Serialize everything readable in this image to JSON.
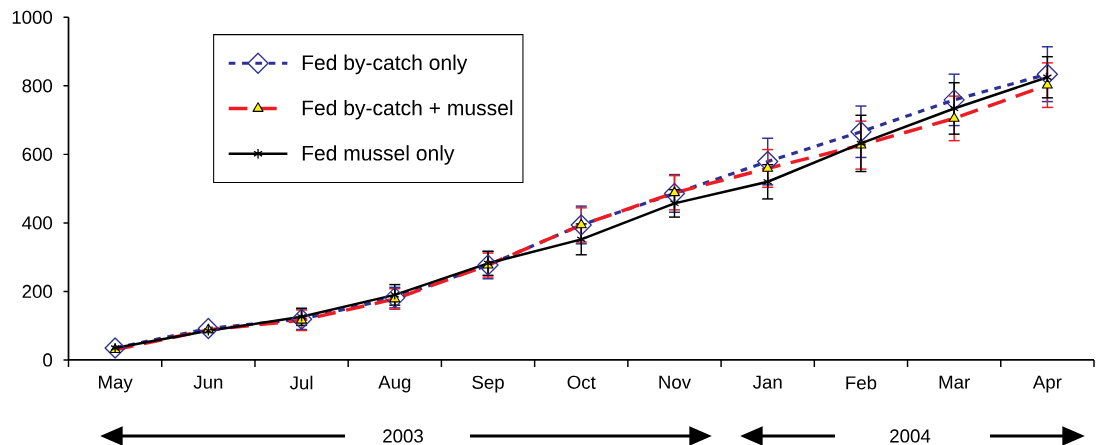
{
  "chart_data": {
    "type": "line",
    "categories": [
      "May",
      "Jun",
      "Jul",
      "Aug",
      "Sep",
      "Oct",
      "Nov",
      "Jan",
      "Feb",
      "Mar",
      "Apr"
    ],
    "series": [
      {
        "name": "Fed by-catch only",
        "color": "#2e3192",
        "marker": "diamond",
        "line_style": "dotted",
        "values": [
          35,
          92,
          119,
          182,
          277,
          394,
          486,
          579,
          666,
          759,
          834
        ],
        "errors": [
          null,
          null,
          30,
          30,
          40,
          55,
          55,
          68,
          75,
          75,
          80
        ]
      },
      {
        "name": "Fed by-catch + mussel",
        "color": "#ed1c24",
        "marker": "triangle",
        "line_style": "dashed",
        "values": [
          30,
          88,
          116,
          178,
          277,
          394,
          488,
          559,
          627,
          705,
          802
        ],
        "errors": [
          null,
          null,
          30,
          30,
          35,
          50,
          50,
          55,
          70,
          65,
          65
        ]
      },
      {
        "name": "Fed mussel only",
        "color": "#000000",
        "marker": "cross",
        "line_style": "solid",
        "values": [
          35,
          85,
          126,
          190,
          282,
          352,
          457,
          520,
          632,
          734,
          825
        ],
        "errors": [
          null,
          null,
          25,
          30,
          35,
          45,
          40,
          50,
          82,
          75,
          60
        ]
      }
    ],
    "ylim": [
      0,
      1000
    ],
    "yticks": [
      0,
      200,
      400,
      600,
      800,
      1000
    ],
    "legend": "top left",
    "annotations": [
      "2003",
      "2004"
    ]
  }
}
